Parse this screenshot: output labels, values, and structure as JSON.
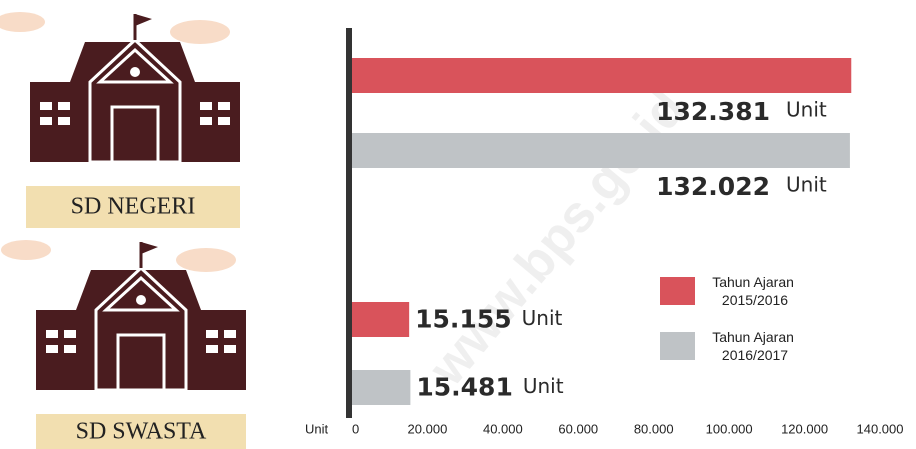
{
  "chart_data": {
    "type": "bar",
    "orientation": "horizontal",
    "categories": [
      "SD NEGERI",
      "SD SWASTA"
    ],
    "series": [
      {
        "name": "Tahun Ajaran 2015/2016",
        "color": "#d9535b",
        "values": [
          132381,
          15155
        ],
        "value_labels": [
          "132.381",
          "15.155"
        ]
      },
      {
        "name": "Tahun Ajaran 2016/2017",
        "color": "#bfc3c6",
        "values": [
          132022,
          15481
        ],
        "value_labels": [
          "132.022",
          "15.481"
        ]
      }
    ],
    "value_unit": "Unit",
    "x_axis_label": "Unit",
    "xlim": [
      0,
      140000
    ],
    "xticks": [
      0,
      {
        "value": 20000,
        "label": "20.000"
      },
      {
        "value": 40000,
        "label": "40.000"
      },
      {
        "value": 60000,
        "label": "60.000"
      },
      {
        "value": 80000,
        "label": "80.000"
      },
      {
        "value": 100000,
        "label": "100.000"
      },
      {
        "value": 120000,
        "label": "120.000"
      },
      {
        "value": 140000,
        "label": "140.000"
      }
    ],
    "watermark": "www.bps.go.id",
    "legend": "right"
  }
}
